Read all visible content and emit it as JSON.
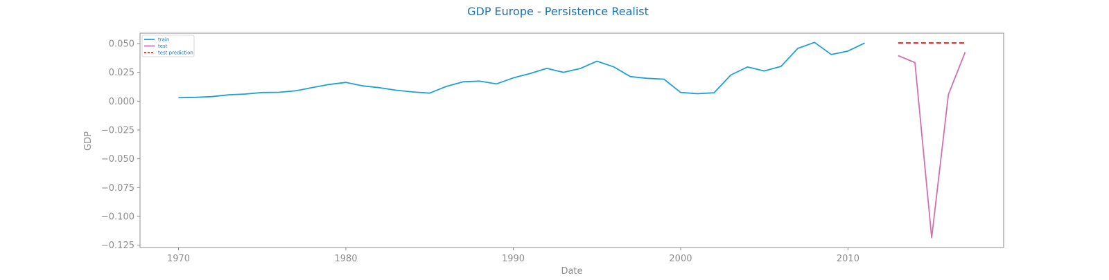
{
  "chart_data": {
    "type": "line",
    "title": "GDP Europe - Persistence Realist",
    "xlabel": "Date",
    "ylabel": "GDP",
    "xlim": [
      1967.7,
      2019.3
    ],
    "ylim": [
      -0.127,
      0.059
    ],
    "x_ticks": [
      1970,
      1980,
      1990,
      2000,
      2010
    ],
    "x_tick_labels": [
      "1970",
      "1980",
      "1990",
      "2000",
      "2010"
    ],
    "y_ticks": [
      0.05,
      0.025,
      0.0,
      -0.025,
      -0.05,
      -0.075,
      -0.1,
      -0.125
    ],
    "y_tick_labels": [
      "0.050",
      "0.025",
      "0.000",
      "−0.025",
      "−0.050",
      "−0.075",
      "−0.100",
      "−0.125"
    ],
    "grid": false,
    "legend_position": "top-left",
    "series": [
      {
        "name": "train",
        "color": "#1f9fd8",
        "dash": "solid",
        "x": [
          1970,
          1971,
          1972,
          1973,
          1974,
          1975,
          1976,
          1977,
          1978,
          1979,
          1980,
          1981,
          1982,
          1983,
          1984,
          1985,
          1986,
          1987,
          1988,
          1989,
          1990,
          1991,
          1992,
          1993,
          1994,
          1995,
          1996,
          1997,
          1998,
          1999,
          2000,
          2001,
          2002,
          2003,
          2004,
          2005,
          2006,
          2007,
          2008,
          2009,
          2010,
          2011
        ],
        "y": [
          0.003,
          0.0033,
          0.004,
          0.0055,
          0.0062,
          0.0075,
          0.0077,
          0.009,
          0.0118,
          0.0145,
          0.0163,
          0.0133,
          0.0117,
          0.0095,
          0.008,
          0.007,
          0.0128,
          0.0168,
          0.0174,
          0.015,
          0.0202,
          0.024,
          0.0285,
          0.025,
          0.0283,
          0.0347,
          0.0298,
          0.0213,
          0.0198,
          0.0191,
          0.0076,
          0.0065,
          0.0073,
          0.0227,
          0.0297,
          0.0262,
          0.0302,
          0.0458,
          0.051,
          0.0405,
          0.0435,
          0.0505
        ]
      },
      {
        "name": "test",
        "color": "#d36fb0",
        "dash": "solid",
        "x": [
          2013,
          2014,
          2015,
          2016,
          2017
        ],
        "y": [
          0.0395,
          0.0335,
          -0.1185,
          0.0058,
          0.0425
        ]
      },
      {
        "name": "test prediction",
        "color": "#e8261f",
        "dash": "dashed",
        "x": [
          2013,
          2014,
          2015,
          2016,
          2017
        ],
        "y": [
          0.0505,
          0.0505,
          0.0505,
          0.0505,
          0.0505
        ]
      }
    ]
  }
}
